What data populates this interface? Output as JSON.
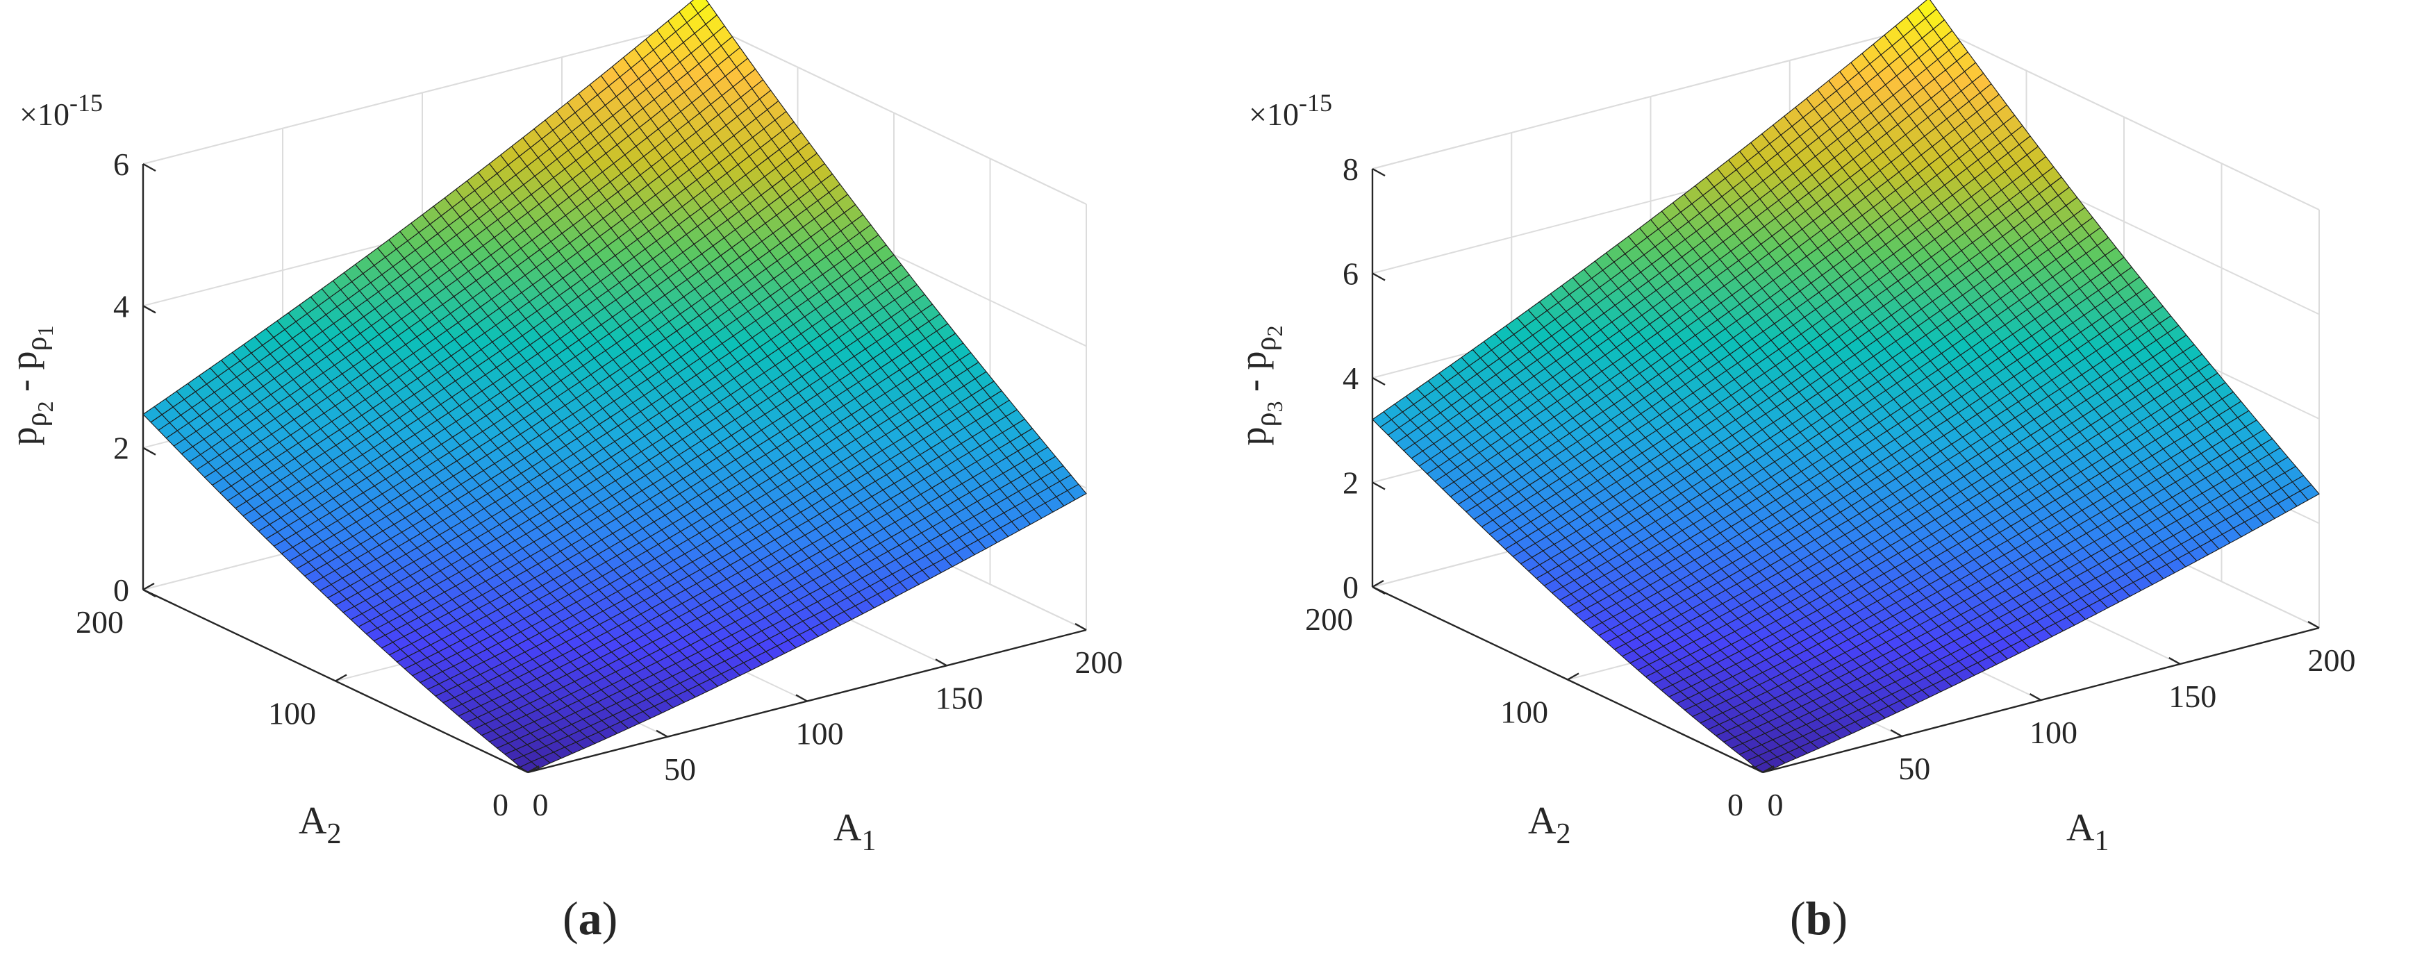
{
  "figure": {
    "panels": [
      {
        "label": "(a)",
        "label_main": "a",
        "exponent_base": "×10",
        "exponent_power": "-15"
      },
      {
        "label": "(b)",
        "label_main": "b",
        "exponent_base": "×10",
        "exponent_power": "-15"
      }
    ]
  },
  "colors": {
    "colormap": [
      "#3e26a8",
      "#4743f8",
      "#2f82f4",
      "#1caadf",
      "#0cc0b8",
      "#5bc862",
      "#c9c22a",
      "#fcc13d",
      "#f9fb15"
    ],
    "grid": "#dcdcdc",
    "axis": "#262626",
    "edge": "#1a1a1a"
  },
  "chart_data": [
    {
      "type": "surface",
      "title": "",
      "xlabel": "A",
      "xlabel_sub": "1",
      "ylabel": "A",
      "ylabel_sub": "2",
      "zlabel_parts": [
        "p",
        "ρ",
        "2",
        " - p",
        "ρ",
        "1"
      ],
      "xlim": [
        0,
        200
      ],
      "ylim": [
        0,
        200
      ],
      "zlim": [
        0,
        6
      ],
      "zmax_surface": 6.4,
      "z_scale_exponent": -15,
      "xticks": [
        "0",
        "50",
        "100",
        "150",
        "200"
      ],
      "xtick_values": [
        0,
        50,
        100,
        150,
        200
      ],
      "yticks": [
        "0",
        "100",
        "200"
      ],
      "ytick_values": [
        0,
        100,
        200
      ],
      "zticks": [
        "0",
        "2",
        "4",
        "6"
      ],
      "ztick_values": [
        0,
        2,
        4,
        6
      ],
      "corner_values": {
        "A1_0_A2_0": 0,
        "A1_200_A2_0": 2.1,
        "A1_0_A2_200": 2.7,
        "A1_200_A2_200": 6.4
      },
      "grid": true
    },
    {
      "type": "surface",
      "title": "",
      "xlabel": "A",
      "xlabel_sub": "1",
      "ylabel": "A",
      "ylabel_sub": "2",
      "zlabel_parts": [
        "p",
        "ρ",
        "3",
        " - p",
        "ρ",
        "2"
      ],
      "xlim": [
        0,
        200
      ],
      "ylim": [
        0,
        200
      ],
      "zlim": [
        0,
        8
      ],
      "zmax_surface": 8.5,
      "z_scale_exponent": -15,
      "xticks": [
        "0",
        "50",
        "100",
        "150",
        "200"
      ],
      "xtick_values": [
        0,
        50,
        100,
        150,
        200
      ],
      "yticks": [
        "0",
        "100",
        "200"
      ],
      "ytick_values": [
        0,
        100,
        200
      ],
      "zticks": [
        "0",
        "2",
        "4",
        "6",
        "8"
      ],
      "ztick_values": [
        0,
        2,
        4,
        6,
        8
      ],
      "corner_values": {
        "A1_0_A2_0": 0,
        "A1_200_A2_0": 2.8,
        "A1_0_A2_200": 3.5,
        "A1_200_A2_200": 8.5
      },
      "grid": true
    }
  ]
}
